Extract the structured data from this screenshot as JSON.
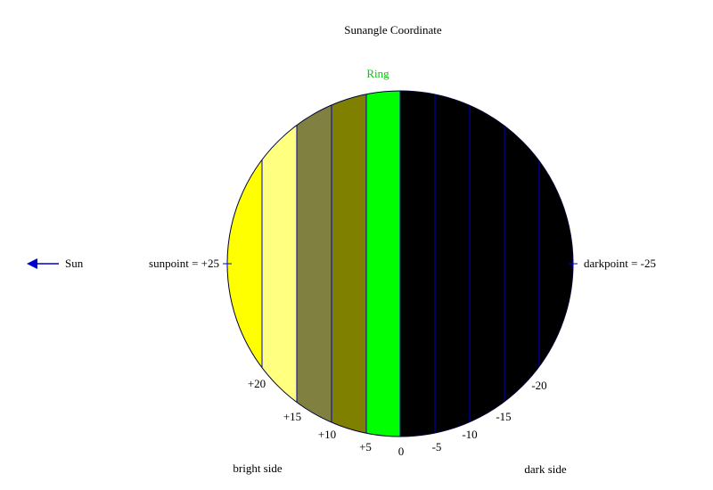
{
  "title": "Sunangle Coordinate",
  "ring_label": "Ring",
  "sun_label": "Sun",
  "sunpoint_label": "sunpoint = +25",
  "darkpoint_label": "darkpoint = -25",
  "scale_labels": [
    "+20",
    "+15",
    "+10",
    "+5",
    "0",
    "-5",
    "-10",
    "-15",
    "-20"
  ],
  "bright_side_label": "bright side",
  "dark_side_label": "dark side"
}
